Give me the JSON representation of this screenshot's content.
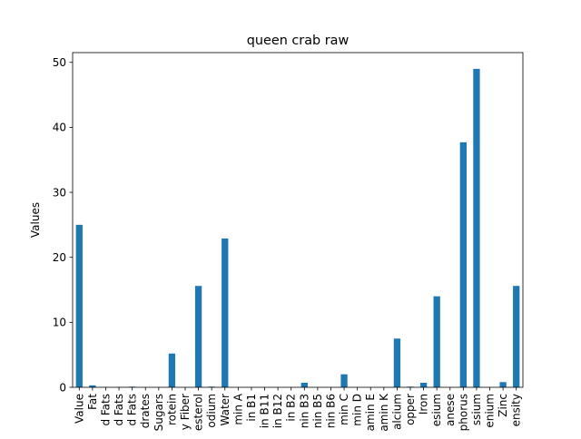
{
  "chart_data": {
    "type": "bar",
    "title": "queen crab raw",
    "xlabel": "",
    "ylabel": "Values",
    "ylim": [
      0,
      51.5
    ],
    "yticks": [
      0,
      10,
      20,
      30,
      40,
      50
    ],
    "grid": false,
    "legend": "none",
    "bar_color": "#1f77b4",
    "categories": [
      "Value",
      "Fat",
      "d Fats",
      "d Fats",
      "d Fats",
      "drates",
      "Sugars",
      "rotein",
      "y Fiber",
      "esterol",
      "odium",
      "Water",
      "min A",
      "in B1",
      "in B11",
      "in B12",
      "in B2",
      "nin B3",
      "nin B5",
      "nin B6",
      "min C",
      "min D",
      "amin E",
      "amin K",
      "alcium",
      "opper",
      "Iron",
      "esium",
      "anese",
      "phorus",
      "ssium",
      "enium",
      "Zinc",
      "ensity"
    ],
    "values": [
      25.0,
      0.3,
      0.05,
      0.05,
      0.1,
      0.0,
      0.0,
      5.2,
      0.0,
      15.6,
      0.1,
      22.9,
      0.0,
      0.0,
      0.0,
      0.0,
      0.0,
      0.7,
      0.0,
      0.0,
      2.0,
      0.0,
      0.0,
      0.0,
      7.5,
      0.1,
      0.7,
      14.0,
      0.0,
      37.7,
      49.0,
      0.0,
      0.8,
      15.6
    ]
  }
}
